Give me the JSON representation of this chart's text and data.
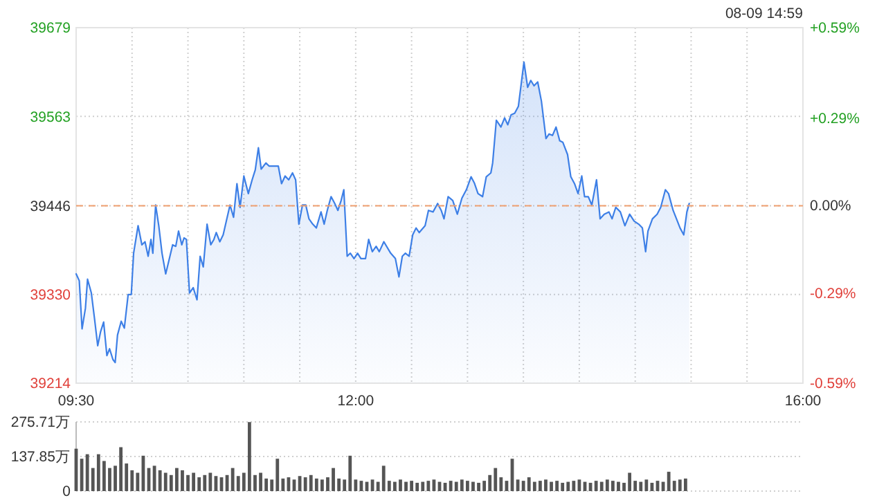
{
  "chart_data": [
    {
      "type": "area",
      "subtitle": "08-09 14:59",
      "x": [
        9.5,
        9.528,
        9.553,
        9.583,
        9.602,
        9.636,
        9.664,
        9.693,
        9.718,
        9.746,
        9.775,
        9.799,
        9.829,
        9.849,
        9.87,
        9.903,
        9.931,
        9.965,
        9.993,
        10.014,
        10.054,
        10.088,
        10.116,
        10.144,
        10.169,
        10.186,
        10.211,
        10.239,
        10.268,
        10.301,
        10.334,
        10.363,
        10.391,
        10.416,
        10.445,
        10.465,
        10.486,
        10.514,
        10.547,
        10.581,
        10.609,
        10.637,
        10.671,
        10.704,
        10.732,
        10.753,
        10.785,
        10.815,
        10.843,
        10.876,
        10.908,
        10.938,
        10.966,
        11.0,
        11.04,
        11.074,
        11.102,
        11.13,
        11.155,
        11.197,
        11.225,
        11.266,
        11.308,
        11.337,
        11.369,
        11.401,
        11.435,
        11.463,
        11.492,
        11.524,
        11.554,
        11.582,
        11.616,
        11.648,
        11.69,
        11.718,
        11.746,
        11.78,
        11.813,
        11.841,
        11.87,
        11.894,
        11.924,
        11.952,
        11.985,
        12.017,
        12.047,
        12.088,
        12.116,
        12.149,
        12.183,
        12.211,
        12.252,
        12.313,
        12.355,
        12.387,
        12.417,
        12.445,
        12.478,
        12.51,
        12.54,
        12.568,
        12.621,
        12.651,
        12.692,
        12.733,
        12.765,
        12.79,
        12.827,
        12.868,
        12.909,
        12.95,
        12.99,
        13.032,
        13.061,
        13.094,
        13.135,
        13.168,
        13.209,
        13.225,
        13.258,
        13.299,
        13.332,
        13.36,
        13.39,
        13.422,
        13.455,
        13.505,
        13.538,
        13.566,
        13.595,
        13.628,
        13.661,
        13.702,
        13.73,
        13.76,
        13.792,
        13.825,
        13.853,
        13.895,
        13.924,
        13.957,
        13.989,
        14.022,
        14.047,
        14.08,
        14.112,
        14.154,
        14.186,
        14.223,
        14.265,
        14.293,
        14.326,
        14.367,
        14.408,
        14.45,
        14.49,
        14.531,
        14.564,
        14.593,
        14.614,
        14.654,
        14.696,
        14.728,
        14.77,
        14.798,
        14.839,
        14.869,
        14.901,
        14.934,
        14.962,
        14.983
      ],
      "series": [
        {
          "color": "#3d7fe6",
          "values": [
            39357,
            39348,
            39285,
            39312,
            39350,
            39332,
            39299,
            39263,
            39281,
            39294,
            39250,
            39259,
            39245,
            39241,
            39277,
            39295,
            39286,
            39330,
            39330,
            39384,
            39420,
            39395,
            39399,
            39380,
            39402,
            39384,
            39447,
            39420,
            39384,
            39357,
            39377,
            39395,
            39393,
            39413,
            39395,
            39404,
            39402,
            39332,
            39339,
            39323,
            39380,
            39366,
            39422,
            39395,
            39402,
            39411,
            39399,
            39408,
            39426,
            39447,
            39431,
            39475,
            39444,
            39485,
            39462,
            39480,
            39493,
            39522,
            39494,
            39502,
            39498,
            39498,
            39498,
            39475,
            39485,
            39480,
            39489,
            39480,
            39422,
            39447,
            39447,
            39429,
            39422,
            39417,
            39438,
            39422,
            39440,
            39458,
            39449,
            39440,
            39453,
            39467,
            39380,
            39384,
            39377,
            39384,
            39377,
            39377,
            39402,
            39386,
            39393,
            39386,
            39399,
            39384,
            39377,
            39353,
            39380,
            39384,
            39380,
            39408,
            39417,
            39411,
            39420,
            39440,
            39438,
            39449,
            39440,
            39429,
            39458,
            39453,
            39435,
            39456,
            39467,
            39484,
            39476,
            39462,
            39458,
            39484,
            39489,
            39502,
            39558,
            39549,
            39561,
            39552,
            39565,
            39567,
            39576,
            39634,
            39601,
            39610,
            39603,
            39608,
            39583,
            39534,
            39540,
            39538,
            39549,
            39531,
            39529,
            39513,
            39484,
            39475,
            39462,
            39485,
            39458,
            39458,
            39447,
            39480,
            39429,
            39435,
            39438,
            39429,
            39444,
            39438,
            39420,
            39435,
            39426,
            39422,
            39417,
            39386,
            39413,
            39429,
            39435,
            39444,
            39467,
            39462,
            39440,
            39429,
            39417,
            39408,
            39438,
            39449
          ]
        }
      ],
      "xlim": [
        9.5,
        16
      ],
      "xticks": [
        {
          "value": 9.5,
          "label": "09:30"
        },
        {
          "value": 10,
          "label": null
        },
        {
          "value": 10.5,
          "label": null
        },
        {
          "value": 11,
          "label": null
        },
        {
          "value": 11.5,
          "label": null
        },
        {
          "value": 12,
          "label": "12:00"
        },
        {
          "value": 12.5,
          "label": null
        },
        {
          "value": 13,
          "label": null
        },
        {
          "value": 13.5,
          "label": null
        },
        {
          "value": 14,
          "label": null
        },
        {
          "value": 14.5,
          "label": null
        },
        {
          "value": 15,
          "label": null
        },
        {
          "value": 15.5,
          "label": null
        },
        {
          "value": 16,
          "label": "16:00"
        }
      ],
      "ylim": [
        39214,
        39679
      ],
      "yticks": [
        39214,
        39330,
        39446,
        39563,
        39679
      ],
      "y2lim": [
        -0.59,
        0.59
      ],
      "y2ticks": [
        {
          "value": -0.59,
          "label": "-0.59%"
        },
        {
          "value": -0.29,
          "label": "-0.29%"
        },
        {
          "value": 0,
          "label": "0.00%"
        },
        {
          "value": 0.29,
          "label": "+0.29%"
        },
        {
          "value": 0.59,
          "label": "+0.59%"
        }
      ],
      "ref_lines": [
        {
          "axis": "y",
          "value": 39446,
          "color": "#f0a070",
          "line_style": "dashed"
        }
      ],
      "grid": true
    },
    {
      "type": "bar",
      "color": "#555555",
      "tick_labels": "y",
      "grid": "y",
      "x": [
        9.5,
        9.55,
        9.6,
        9.65,
        9.7,
        9.75,
        9.8,
        9.85,
        9.9,
        9.95,
        10.0,
        10.05,
        10.1,
        10.15,
        10.2,
        10.25,
        10.3,
        10.35,
        10.4,
        10.45,
        10.5,
        10.55,
        10.6,
        10.65,
        10.7,
        10.75,
        10.8,
        10.85,
        10.9,
        10.95,
        11.0,
        11.05,
        11.1,
        11.15,
        11.2,
        11.25,
        11.3,
        11.35,
        11.4,
        11.45,
        11.5,
        11.55,
        11.6,
        11.65,
        11.7,
        11.75,
        11.8,
        11.85,
        11.9,
        11.95,
        12.0,
        12.05,
        12.1,
        12.15,
        12.2,
        12.25,
        12.3,
        12.35,
        12.4,
        12.45,
        12.5,
        12.55,
        12.6,
        12.65,
        12.7,
        12.75,
        12.8,
        12.85,
        12.9,
        12.95,
        13.0,
        13.05,
        13.1,
        13.15,
        13.2,
        13.25,
        13.3,
        13.35,
        13.4,
        13.45,
        13.5,
        13.55,
        13.6,
        13.65,
        13.7,
        13.75,
        13.8,
        13.85,
        13.9,
        13.95,
        14.0,
        14.05,
        14.1,
        14.15,
        14.2,
        14.25,
        14.3,
        14.35,
        14.4,
        14.45,
        14.5,
        14.55,
        14.6,
        14.65,
        14.7,
        14.75,
        14.8,
        14.85,
        14.9,
        14.95
      ],
      "values": [
        169,
        129,
        147,
        92,
        147,
        120,
        92,
        101,
        175,
        110,
        83,
        73,
        141,
        92,
        101,
        83,
        73,
        64,
        92,
        83,
        64,
        73,
        55,
        64,
        73,
        60,
        55,
        64,
        92,
        60,
        73,
        275,
        64,
        73,
        50,
        46,
        129,
        50,
        55,
        46,
        60,
        55,
        64,
        50,
        46,
        55,
        92,
        50,
        46,
        141,
        46,
        41,
        37,
        46,
        37,
        101,
        41,
        37,
        46,
        37,
        41,
        33,
        37,
        41,
        46,
        37,
        33,
        41,
        37,
        46,
        41,
        37,
        33,
        41,
        64,
        92,
        55,
        41,
        129,
        46,
        41,
        55,
        37,
        41,
        46,
        37,
        41,
        33,
        37,
        41,
        46,
        37,
        33,
        41,
        37,
        46,
        41,
        37,
        33,
        73,
        41,
        37,
        46,
        33,
        41,
        37,
        77,
        41,
        46,
        50
      ],
      "xlim": [
        9.5,
        16
      ],
      "ylim": [
        0,
        275.71
      ],
      "yticks": [
        0,
        {
          "value": 137.85,
          "label": "137.85万"
        },
        {
          "value": 275.71,
          "label": "275.71万"
        }
      ]
    }
  ]
}
